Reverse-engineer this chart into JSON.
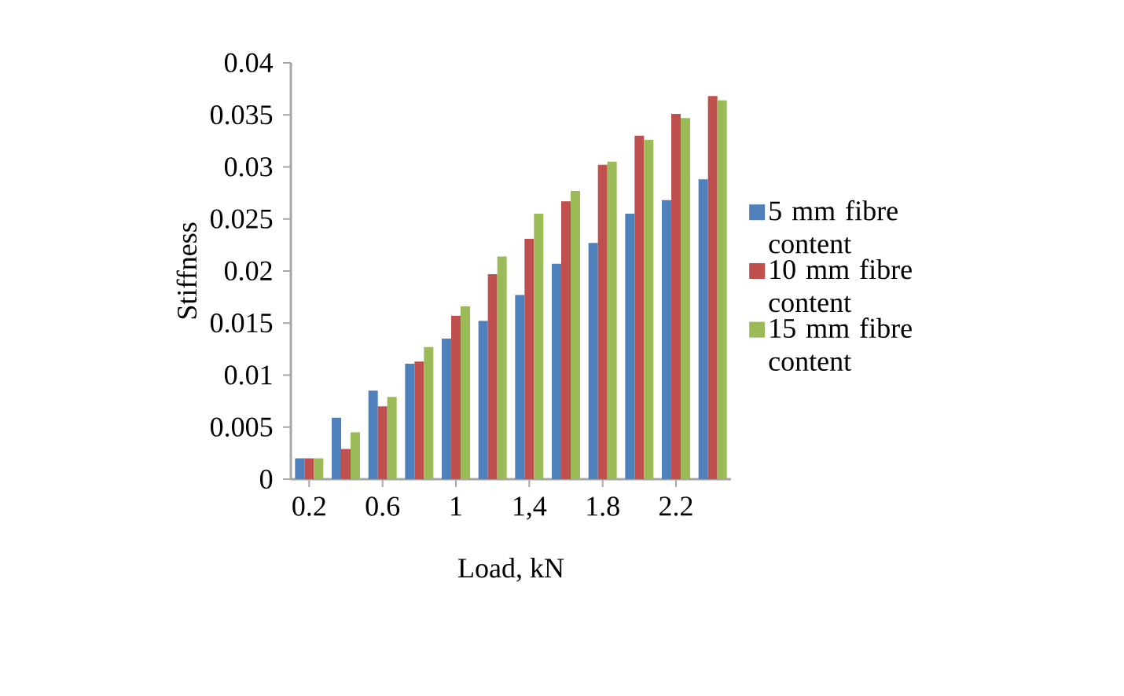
{
  "chart_data": {
    "type": "bar",
    "xlabel": "Load, kN",
    "ylabel": "Stiffness",
    "categories": [
      "0.2",
      null,
      "0.6",
      null,
      "1",
      null,
      "1,4",
      null,
      "1.8",
      null,
      "2.2",
      null
    ],
    "series": [
      {
        "name": "5 mm fibre content",
        "color": "#4f81bd",
        "values": [
          0.002,
          0.0059,
          0.0085,
          0.0111,
          0.0135,
          0.0152,
          0.0177,
          0.0207,
          0.0227,
          0.0255,
          0.0268,
          0.0288
        ]
      },
      {
        "name": "10 mm fibre content",
        "color": "#c0504d",
        "values": [
          0.002,
          0.0029,
          0.007,
          0.0113,
          0.0157,
          0.0197,
          0.0231,
          0.0267,
          0.0302,
          0.033,
          0.0351,
          0.0368
        ]
      },
      {
        "name": "15 mm fibre content",
        "color": "#9bbb59",
        "values": [
          0.002,
          0.0045,
          0.0079,
          0.0127,
          0.0166,
          0.0214,
          0.0255,
          0.0277,
          0.0305,
          0.0326,
          0.0347,
          0.0364
        ]
      }
    ],
    "ylim": [
      0,
      0.04
    ],
    "yticks": [
      0,
      0.005,
      0.01,
      0.015,
      0.02,
      0.025,
      0.03,
      0.035,
      0.04
    ],
    "grid": false,
    "legend": "right"
  }
}
